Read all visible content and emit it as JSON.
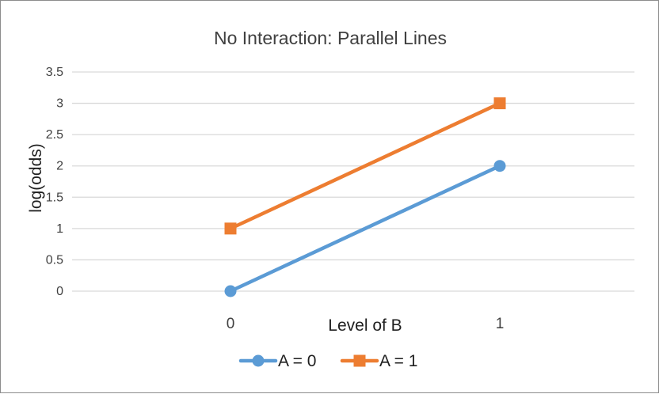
{
  "chart_data": {
    "type": "line",
    "title": "No Interaction: Parallel Lines",
    "xlabel": "Level of B",
    "ylabel": "log(odds)",
    "categories": [
      "0",
      "1"
    ],
    "ylim": [
      0,
      3.5
    ],
    "yticks": [
      "0",
      "0.5",
      "1",
      "1.5",
      "2",
      "2.5",
      "3",
      "3.5"
    ],
    "grid": true,
    "legend": "bottom",
    "series": [
      {
        "name": "A = 0",
        "values": [
          0,
          2
        ],
        "color": "#5b9bd5",
        "marker": "circle"
      },
      {
        "name": "A = 1",
        "values": [
          1,
          3
        ],
        "color": "#ed7d31",
        "marker": "square"
      }
    ]
  }
}
